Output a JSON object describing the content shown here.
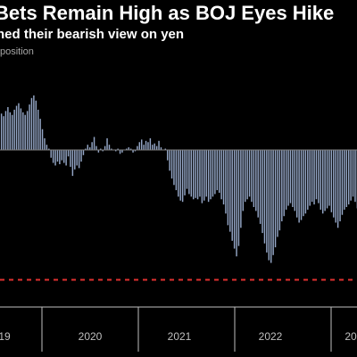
{
  "chart_data": {
    "type": "bar",
    "title": "Bets Remain High as BOJ Eyes Hike",
    "subtitle": "ned their bearish view on yen",
    "ylabel": "position",
    "x_ticks": [
      "19",
      "2020",
      "2021",
      "2022",
      "20"
    ],
    "ylim": [
      -110,
      55
    ],
    "reference_line": -100,
    "bar_color": "#94a6c6",
    "reference_color": "#e0312f",
    "series": [
      {
        "start": "2019-01",
        "frequency": "weekly",
        "values": [
          25,
          28,
          26,
          30,
          33,
          29,
          27,
          31,
          34,
          36,
          32,
          29,
          27,
          30,
          35,
          40,
          42,
          38,
          31,
          24,
          16,
          9,
          4,
          1,
          -6,
          -10,
          -12,
          -9,
          -11,
          -8,
          -10,
          -12,
          -5,
          -13,
          -20,
          -15,
          -12,
          -14,
          -9,
          -4,
          1,
          4,
          2,
          6,
          10,
          3,
          -2,
          1,
          -1,
          3,
          9,
          4,
          1,
          0,
          -1,
          1,
          -3,
          -2,
          0,
          1,
          2,
          1,
          -2,
          -1,
          3,
          6,
          8,
          4,
          7,
          6,
          9,
          4,
          5,
          3,
          7,
          2,
          0,
          1,
          -8,
          -16,
          -22,
          -27,
          -31,
          -36,
          -39,
          -40,
          -35,
          -30,
          -34,
          -36,
          -38,
          -37,
          -38,
          -36,
          -41,
          -39,
          -36,
          -40,
          -38,
          -36,
          -34,
          -31,
          -33,
          -38,
          -42,
          -49,
          -58,
          -63,
          -70,
          -76,
          -82,
          -74,
          -60,
          -47,
          -40,
          -38,
          -36,
          -40,
          -44,
          -47,
          -52,
          -57,
          -64,
          -72,
          -79,
          -85,
          -87,
          -81,
          -75,
          -67,
          -62,
          -55,
          -51,
          -46,
          -43,
          -41,
          -44,
          -47,
          -52,
          -56,
          -54,
          -51,
          -49,
          -46,
          -43,
          -40,
          -42,
          -38,
          -41,
          -46,
          -49,
          -47,
          -45,
          -43,
          -48,
          -52,
          -56,
          -60,
          -55,
          -50,
          -46,
          -44,
          -42,
          -39,
          -36,
          -40,
          -45,
          -51
        ]
      }
    ]
  }
}
